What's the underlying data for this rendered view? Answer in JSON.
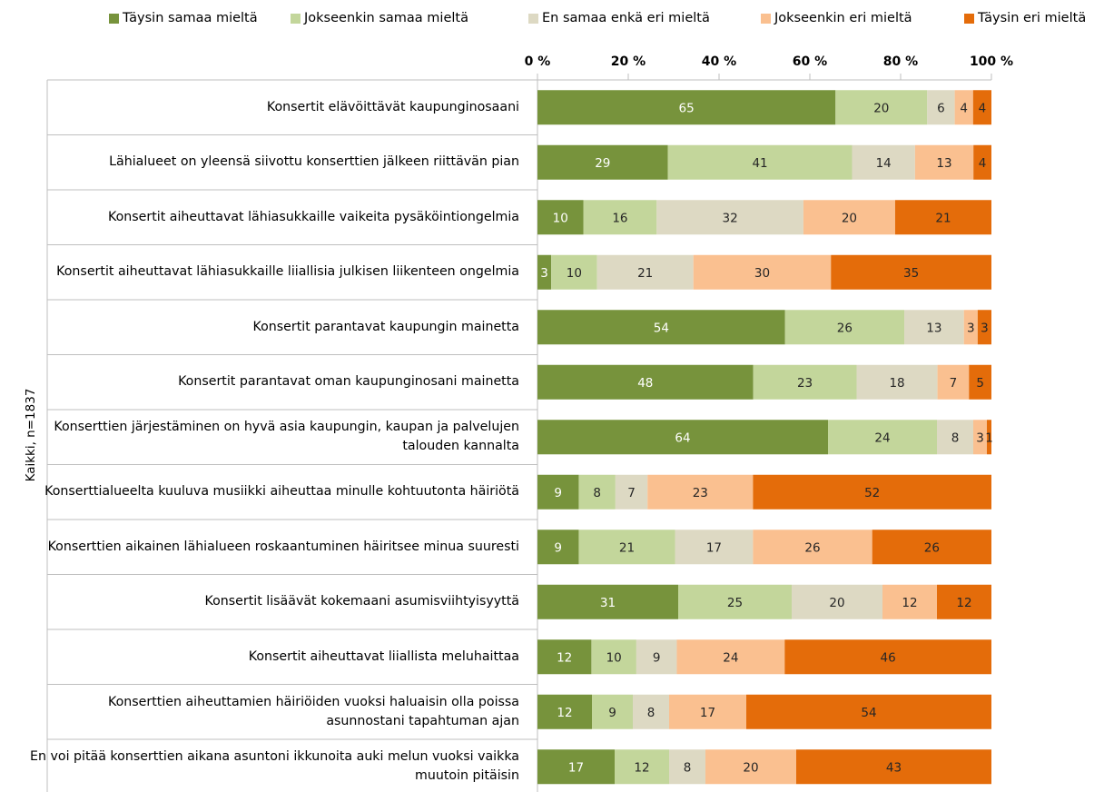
{
  "chart_data": {
    "type": "bar",
    "orientation": "horizontal-stacked-100",
    "ylabel": "Kaikki, n=1837",
    "xlim": [
      0,
      100
    ],
    "xticks": [
      "0 %",
      "20 %",
      "40 %",
      "60 %",
      "80 %",
      "100 %"
    ],
    "legend_position": "top",
    "series": [
      {
        "name": "Täysin samaa mieltä",
        "color": "#77933c",
        "label_color": "#ffffff"
      },
      {
        "name": "Jokseenkin samaa mieltä",
        "color": "#c3d69b",
        "label_color": "#262626"
      },
      {
        "name": "En samaa enkä eri mieltä",
        "color": "#ddd9c3",
        "label_color": "#262626"
      },
      {
        "name": "Jokseenkin eri mieltä",
        "color": "#fac090",
        "label_color": "#262626"
      },
      {
        "name": "Täysin eri mieltä",
        "color": "#e46c0a",
        "label_color": "#262626"
      }
    ],
    "categories": [
      {
        "label": "Konsertit elävöittävät kaupunginosaani",
        "values": [
          65,
          20,
          6,
          4,
          4
        ]
      },
      {
        "label": "Lähialueet on yleensä siivottu konserttien jälkeen riittävän pian",
        "values": [
          29,
          41,
          14,
          13,
          4
        ]
      },
      {
        "label": "Konsertit aiheuttavat lähiasukkaille vaikeita pysäköintiongelmia",
        "values": [
          10,
          16,
          32,
          20,
          21
        ]
      },
      {
        "label": "Konsertit aiheuttavat lähiasukkaille liiallisia julkisen liikenteen ongelmia",
        "values": [
          3,
          10,
          21,
          30,
          35
        ]
      },
      {
        "label": "Konsertit parantavat kaupungin mainetta",
        "values": [
          54,
          26,
          13,
          3,
          3
        ]
      },
      {
        "label": "Konsertit parantavat oman kaupunginosani mainetta",
        "values": [
          48,
          23,
          18,
          7,
          5
        ]
      },
      {
        "label": "Konserttien järjestäminen on hyvä asia kaupungin, kaupan ja palvelujen talouden kannalta",
        "values": [
          64,
          24,
          8,
          3,
          1
        ]
      },
      {
        "label": "Konserttialueelta kuuluva musiikki aiheuttaa minulle kohtuutonta häiriötä",
        "values": [
          9,
          8,
          7,
          23,
          52
        ]
      },
      {
        "label": "Konserttien aikainen lähialueen roskaantuminen häiritsee minua suuresti",
        "values": [
          9,
          21,
          17,
          26,
          26
        ]
      },
      {
        "label": "Konsertit lisäävät kokemaani asumisviihtyisyyttä",
        "values": [
          31,
          25,
          20,
          12,
          12
        ]
      },
      {
        "label": "Konsertit aiheuttavat liiallista meluhaittaa",
        "values": [
          12,
          10,
          9,
          24,
          46
        ]
      },
      {
        "label": "Konserttien aiheuttamien häiriöiden vuoksi haluaisin olla poissa asunnostani tapahtuman ajan",
        "values": [
          12,
          9,
          8,
          17,
          54
        ]
      },
      {
        "label": "En voi pitää konserttien aikana asuntoni ikkunoita auki melun vuoksi vaikka muutoin pitäisin",
        "values": [
          17,
          12,
          8,
          20,
          43
        ]
      }
    ]
  }
}
